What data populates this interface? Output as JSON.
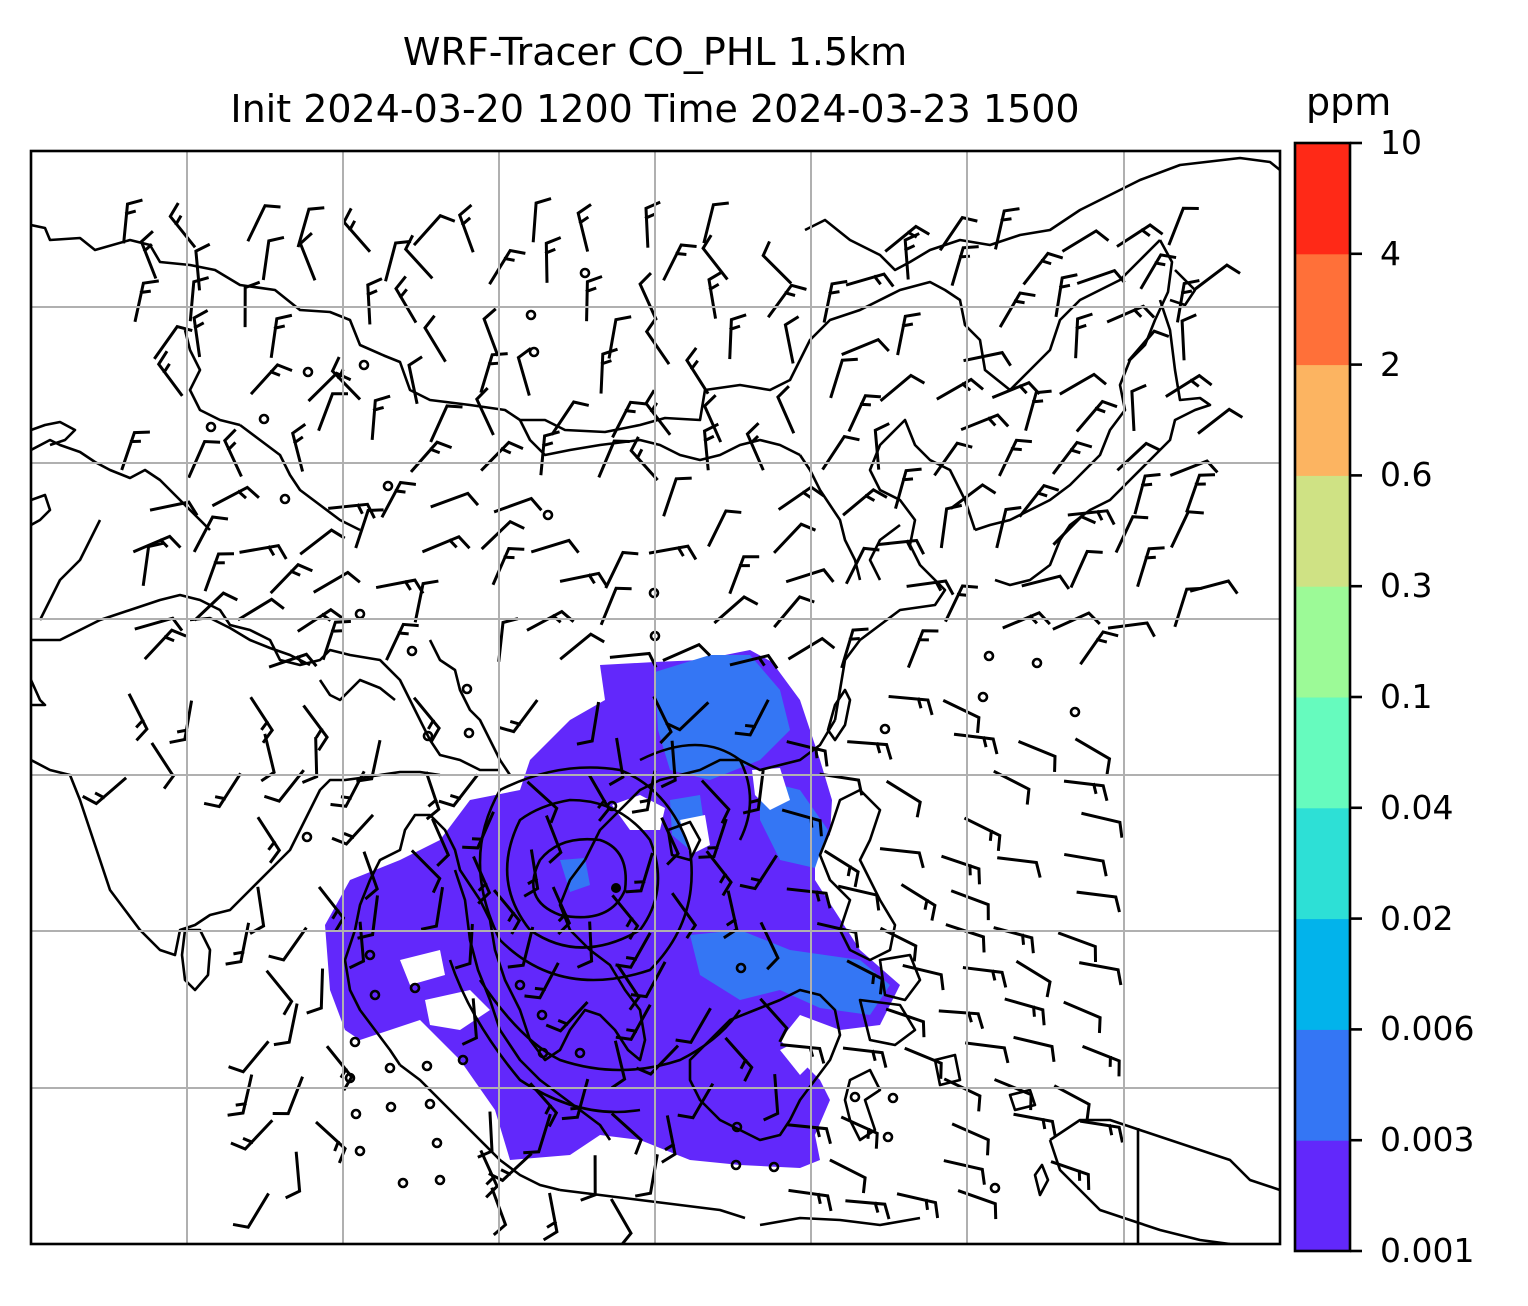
{
  "title_line1": "WRF-Tracer CO_PHL 1.5km",
  "title_line2": "Init 2024-03-20 1200 Time 2024-03-23 1500",
  "colorbar": {
    "unit": "ppm",
    "levels": [
      "0.001",
      "0.003",
      "0.006",
      "0.02",
      "0.04",
      "0.1",
      "0.3",
      "0.6",
      "2",
      "4",
      "10"
    ],
    "colors": [
      "#6228fb",
      "#3476f4",
      "#02b3eb",
      "#2de0d6",
      "#66fbbe",
      "#9cfa97",
      "#cfe284",
      "#fcb461",
      "#ff7039",
      "#ff2917"
    ]
  },
  "map": {
    "gridlines": true,
    "tracer_fill_colors": {
      "low": "#6228fb",
      "mid": "#3476f4",
      "trace": "#02b3eb"
    },
    "wind_barbs": true
  }
}
